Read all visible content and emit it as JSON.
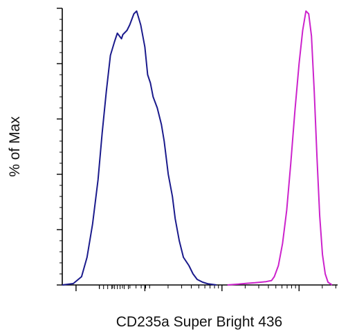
{
  "chart_data": {
    "type": "line",
    "title": "",
    "xlabel": "CD235a Super Bright 436",
    "ylabel": "% of Max",
    "x_scale": "log",
    "x_tick_labels": [],
    "y_tick_labels": [],
    "ylim": [
      0,
      100
    ],
    "grid": false,
    "legend": "none",
    "series": [
      {
        "color": "#1a1a8c",
        "points": [
          [
            0.0,
            0
          ],
          [
            0.04,
            0.5
          ],
          [
            0.07,
            3
          ],
          [
            0.09,
            10
          ],
          [
            0.11,
            22
          ],
          [
            0.13,
            38
          ],
          [
            0.145,
            55
          ],
          [
            0.16,
            70
          ],
          [
            0.175,
            83
          ],
          [
            0.19,
            88
          ],
          [
            0.2,
            91
          ],
          [
            0.215,
            89
          ],
          [
            0.22,
            90.5
          ],
          [
            0.235,
            92
          ],
          [
            0.245,
            94
          ],
          [
            0.26,
            98
          ],
          [
            0.27,
            99
          ],
          [
            0.285,
            94
          ],
          [
            0.3,
            86
          ],
          [
            0.31,
            76
          ],
          [
            0.32,
            73
          ],
          [
            0.33,
            68
          ],
          [
            0.345,
            64
          ],
          [
            0.36,
            58
          ],
          [
            0.37,
            52
          ],
          [
            0.385,
            40
          ],
          [
            0.4,
            32
          ],
          [
            0.41,
            24
          ],
          [
            0.425,
            16
          ],
          [
            0.44,
            10
          ],
          [
            0.46,
            7
          ],
          [
            0.475,
            4
          ],
          [
            0.49,
            2
          ],
          [
            0.51,
            1
          ],
          [
            0.53,
            0.4
          ],
          [
            0.56,
            0
          ]
        ]
      },
      {
        "color": "#cc22cc",
        "points": [
          [
            0.6,
            0
          ],
          [
            0.64,
            0.3
          ],
          [
            0.67,
            0.6
          ],
          [
            0.7,
            0.8
          ],
          [
            0.74,
            1.2
          ],
          [
            0.76,
            1.6
          ],
          [
            0.77,
            3
          ],
          [
            0.785,
            7
          ],
          [
            0.8,
            15
          ],
          [
            0.815,
            27
          ],
          [
            0.83,
            44
          ],
          [
            0.845,
            63
          ],
          [
            0.86,
            80
          ],
          [
            0.873,
            92
          ],
          [
            0.885,
            99
          ],
          [
            0.895,
            98
          ],
          [
            0.905,
            90
          ],
          [
            0.915,
            70
          ],
          [
            0.925,
            46
          ],
          [
            0.935,
            25
          ],
          [
            0.945,
            11
          ],
          [
            0.955,
            4
          ],
          [
            0.965,
            1
          ],
          [
            0.98,
            0
          ]
        ]
      }
    ]
  }
}
